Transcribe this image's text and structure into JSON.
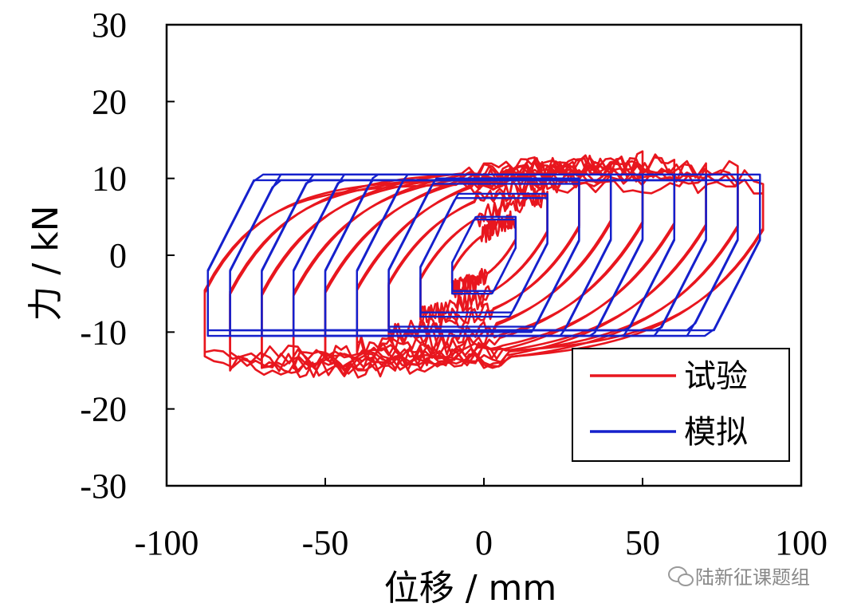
{
  "chart_data": {
    "type": "line",
    "xlabel": "位移 / mm",
    "ylabel": "力 / kN",
    "xlim": [
      -100,
      100
    ],
    "ylim": [
      -30,
      30
    ],
    "xticks": [
      -100,
      -50,
      0,
      50,
      100
    ],
    "yticks": [
      -30,
      -20,
      -10,
      0,
      10,
      20,
      30
    ],
    "xtick_labels": [
      "-100",
      "-50",
      "0",
      "50",
      "100"
    ],
    "ytick_labels": [
      "-30",
      "-20",
      "-10",
      "0",
      "10",
      "20",
      "30"
    ],
    "grid": false,
    "legend_position": "bottom-right",
    "series": [
      {
        "name": "试验",
        "color": "#e8161e",
        "cycles": [
          {
            "amp": 10,
            "fpos": 6,
            "fneg": -6
          },
          {
            "amp": 20,
            "fpos": 9,
            "fneg": -9
          },
          {
            "amp": 30,
            "fpos": 11,
            "fneg": -11
          },
          {
            "amp": 40,
            "fpos": 13,
            "fneg": -13
          },
          {
            "amp": 50,
            "fpos": 12.5,
            "fneg": -14
          },
          {
            "amp": 60,
            "fpos": 12,
            "fneg": -15
          },
          {
            "amp": 70,
            "fpos": 11.5,
            "fneg": -15
          },
          {
            "amp": 80,
            "fpos": 11,
            "fneg": -14.5
          },
          {
            "amp": 88,
            "fpos": 10,
            "fneg": -14
          }
        ],
        "peak_points": [
          [
            33,
            14
          ],
          [
            -36,
            -15.5
          ],
          [
            -88,
            -14
          ],
          [
            88,
            10
          ]
        ]
      },
      {
        "name": "模拟",
        "color": "#1520cc",
        "cycles": [
          {
            "amp": 10,
            "fpos": 5,
            "fneg": -5
          },
          {
            "amp": 20,
            "fpos": 8,
            "fneg": -8
          },
          {
            "amp": 30,
            "fpos": 10,
            "fneg": -10
          },
          {
            "amp": 40,
            "fpos": 10.5,
            "fneg": -10.5
          },
          {
            "amp": 50,
            "fpos": 10.5,
            "fneg": -10.5
          },
          {
            "amp": 60,
            "fpos": 10.5,
            "fneg": -10.5
          },
          {
            "amp": 70,
            "fpos": 10.5,
            "fneg": -10.5
          },
          {
            "amp": 80,
            "fpos": 10.5,
            "fneg": -10.5
          },
          {
            "amp": 87,
            "fpos": 10.5,
            "fneg": -10.5
          }
        ],
        "peak_points": [
          [
            87,
            10.5
          ],
          [
            -87,
            -10.5
          ]
        ]
      }
    ]
  },
  "watermark": {
    "text": "陆新征课题组",
    "icon": "wechat-icon"
  }
}
